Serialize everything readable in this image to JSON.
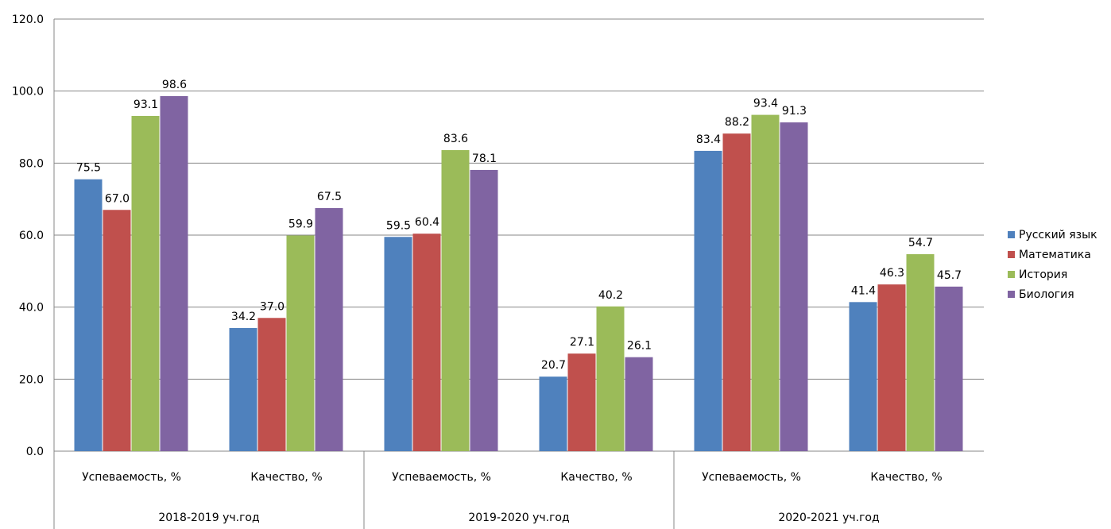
{
  "chart_data": {
    "type": "bar",
    "title": "",
    "xlabel": "",
    "ylabel": "",
    "ylim": [
      0,
      120
    ],
    "y_ticks": [
      "0.0",
      "20.0",
      "40.0",
      "60.0",
      "80.0",
      "100.0",
      "120.0"
    ],
    "grid": true,
    "legend_position": "right",
    "groups": [
      {
        "label": "2018-2019 уч.год",
        "categories": [
          "Успеваемость, %",
          "Качество, %"
        ]
      },
      {
        "label": "2019-2020 уч.год",
        "categories": [
          "Успеваемость, %",
          "Качество, %"
        ]
      },
      {
        "label": "2020-2021 уч.год",
        "categories": [
          "Успеваемость, %",
          "Качество, %"
        ]
      }
    ],
    "series": [
      {
        "name": "Русский язык",
        "color": "#4f81bd",
        "values": [
          75.5,
          34.2,
          59.5,
          20.7,
          83.4,
          41.4
        ],
        "labels": [
          "75.5",
          "34.2",
          "59.5",
          "20.7",
          "83.4",
          "41.4"
        ]
      },
      {
        "name": "Математика",
        "color": "#c0504d",
        "values": [
          67.0,
          37.0,
          60.4,
          27.1,
          88.2,
          46.3
        ],
        "labels": [
          "67.0",
          "37.0",
          "60.4",
          "27.1",
          "88.2",
          "46.3"
        ]
      },
      {
        "name": "История",
        "color": "#9bbb59",
        "values": [
          93.1,
          59.9,
          83.6,
          40.2,
          93.4,
          54.7
        ],
        "labels": [
          "93.1",
          "59.9",
          "83.6",
          "40.2",
          "93.4",
          "54.7"
        ]
      },
      {
        "name": "Биология",
        "color": "#8064a2",
        "values": [
          98.6,
          67.5,
          78.1,
          26.1,
          91.3,
          45.7
        ],
        "labels": [
          "98.6",
          "67.5",
          "78.1",
          "26.1",
          "91.3",
          "45.7"
        ]
      }
    ]
  }
}
